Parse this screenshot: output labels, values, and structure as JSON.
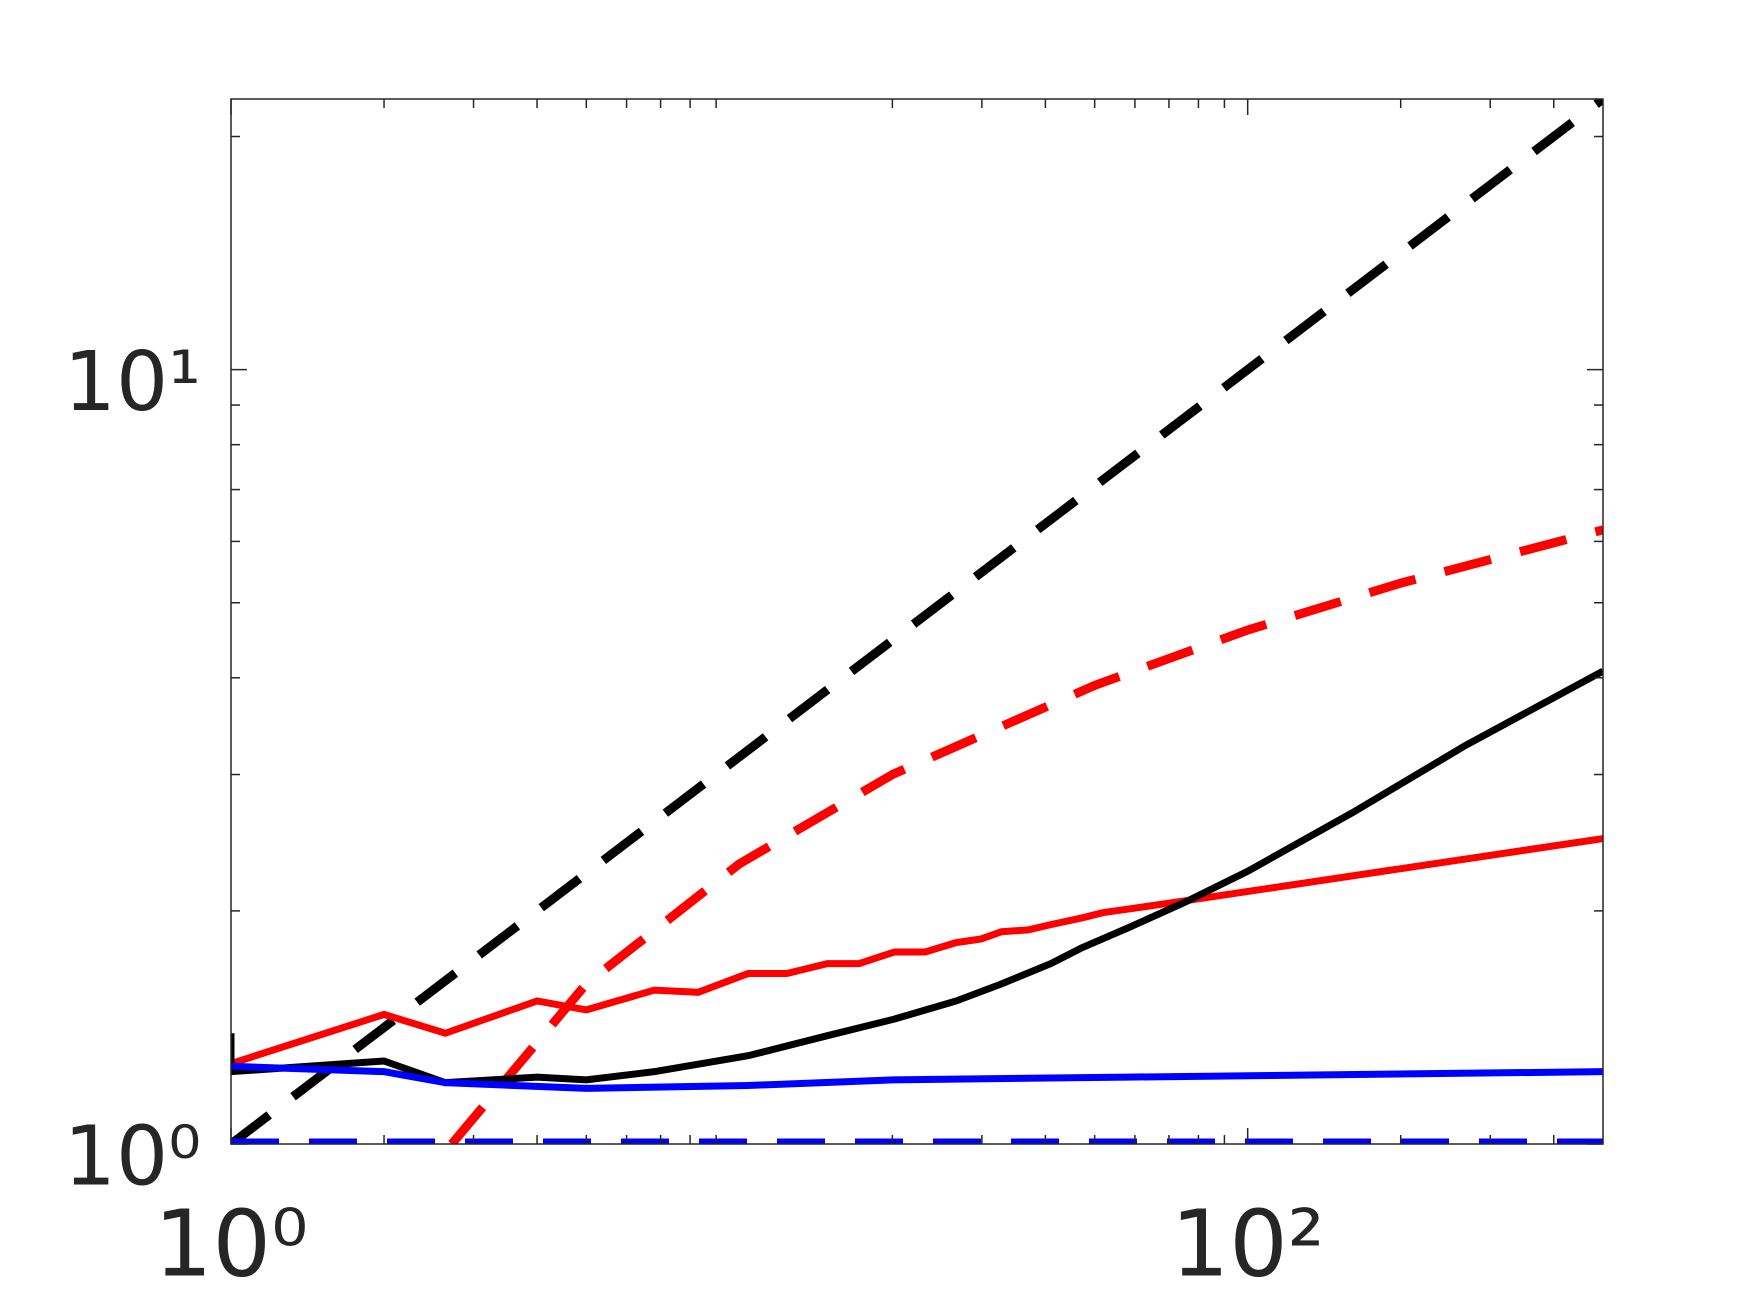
{
  "chart_data": {
    "type": "line",
    "xscale": "log",
    "yscale": "log",
    "xlim": [
      1,
      500
    ],
    "ylim": [
      1,
      22.36
    ],
    "xticks": [
      {
        "value": 1,
        "label": "10⁰"
      },
      {
        "value": 100,
        "label": "10²"
      }
    ],
    "yticks": [
      {
        "value": 1,
        "label": "10⁰"
      },
      {
        "value": 10,
        "label": "10¹"
      }
    ],
    "xminorticks": [
      2,
      3,
      4,
      5,
      6,
      7,
      8,
      9,
      20,
      30,
      40,
      50,
      60,
      70,
      80,
      90,
      200,
      300,
      400
    ],
    "yminorticks": [
      2,
      3,
      4,
      5,
      6,
      7,
      8,
      9,
      20
    ],
    "grid": false,
    "series": [
      {
        "color": "#000000",
        "linestyle": "dashed",
        "x": [
          1,
          500
        ],
        "values": [
          1,
          22.36
        ]
      },
      {
        "color": "#ff0000",
        "linestyle": "dashed",
        "x": [
          2.718,
          5,
          10,
          20,
          50,
          100,
          200,
          500
        ],
        "values": [
          1,
          1.61,
          2.3,
          3.0,
          3.91,
          4.61,
          5.3,
          6.21
        ]
      },
      {
        "color": "#0000ff",
        "linestyle": "dashed",
        "x": [
          1,
          500
        ],
        "values": [
          1,
          1
        ]
      },
      {
        "color": "#ff0000",
        "linestyle": "solid",
        "x": [
          1,
          2,
          2.64,
          4,
          5,
          6.8,
          8.3,
          10.4,
          12.4,
          14.9,
          17.2,
          20.2,
          23.2,
          26.7,
          29.9,
          32.8,
          37,
          41,
          47.4,
          52,
          58,
          75,
          500
        ],
        "values": [
          1.27,
          1.47,
          1.39,
          1.53,
          1.49,
          1.58,
          1.57,
          1.66,
          1.66,
          1.71,
          1.71,
          1.77,
          1.77,
          1.82,
          1.84,
          1.88,
          1.89,
          1.92,
          1.96,
          1.99,
          2.01,
          2.06,
          2.48
        ]
      },
      {
        "color": "#000000",
        "linestyle": "solid",
        "x": [
          1,
          1,
          2,
          2.64,
          4,
          5,
          6.8,
          10.4,
          14.9,
          20.2,
          26.7,
          32.8,
          41,
          47,
          58,
          75,
          100,
          161,
          268,
          500
        ],
        "values": [
          1.39,
          1.24,
          1.28,
          1.2,
          1.22,
          1.21,
          1.24,
          1.3,
          1.38,
          1.45,
          1.53,
          1.61,
          1.71,
          1.79,
          1.9,
          2.05,
          2.25,
          2.68,
          3.27,
          4.08
        ]
      },
      {
        "color": "#0000ff",
        "linestyle": "solid",
        "x": [
          1,
          2,
          2.64,
          5,
          10.4,
          20,
          58,
          500
        ],
        "values": [
          1.26,
          1.24,
          1.2,
          1.18,
          1.19,
          1.21,
          1.22,
          1.24
        ]
      }
    ]
  }
}
